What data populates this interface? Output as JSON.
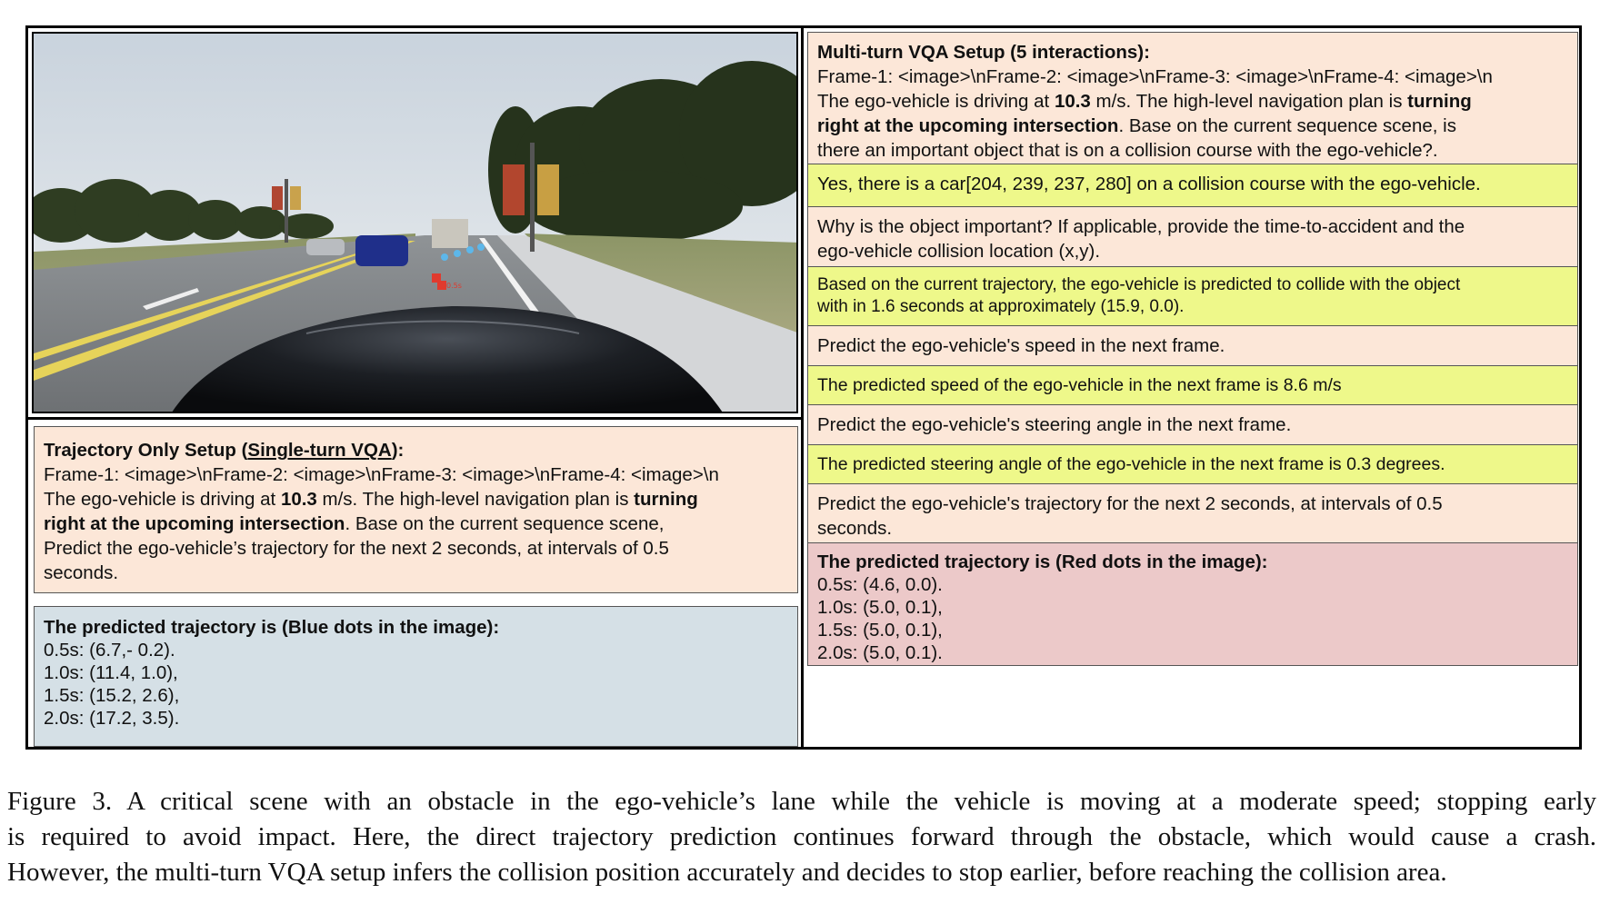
{
  "left": {
    "question": {
      "title_prefix": "Trajectory Only Setup (",
      "title_link": "Single-turn VQA",
      "title_suffix": "):",
      "frames": "Frame-1: <image>\\nFrame-2: <image>\\nFrame-3: <image>\\nFrame-4: <image>\\n",
      "speed_pre": "The ego-vehicle is driving at ",
      "speed_val": "10.3",
      "speed_post": " m/s. The high-level navigation plan is ",
      "plan_a": "turning",
      "plan_b": "right at the upcoming intersection",
      "rest_a": ". Base on the current sequence scene,",
      "rest_b": "Predict the ego-vehicle’s trajectory for the next 2 seconds, at intervals of 0.5",
      "rest_c": "seconds."
    },
    "answer": {
      "title": "The predicted trajectory is (Blue dots in the image):",
      "lines": [
        "0.5s: (6.7,- 0.2).",
        "1.0s: (11.4, 1.0),",
        "1.5s: (15.2, 2.6),",
        "2.0s: (17.2, 3.5)."
      ]
    }
  },
  "right": {
    "setup": {
      "title": "Multi-turn VQA Setup (5 interactions):",
      "frames": "Frame-1: <image>\\nFrame-2: <image>\\nFrame-3: <image>\\nFrame-4: <image>\\n",
      "speed_pre": "The ego-vehicle is driving at ",
      "speed_val": "10.3",
      "speed_post": " m/s. The high-level navigation plan is ",
      "plan_a": "turning",
      "plan_b": "right at the upcoming intersection",
      "rest_a": ". Base on the current sequence scene, is",
      "rest_b": "there an important object that is on a collision course with the ego-vehicle?."
    },
    "a1": "Yes, there is a car[204, 239, 237, 280] on a collision course with the ego-vehicle.",
    "q2_a": "Why is the object important? If applicable, provide the time-to-accident and the",
    "q2_b": "ego-vehicle collision location (x,y).",
    "a2_a": "Based on the current trajectory, the ego-vehicle is predicted to collide with the object",
    "a2_b": "with in 1.6 seconds at approximately (15.9, 0.0).",
    "q3": "Predict the ego-vehicle's speed in the next frame.",
    "a3": "The predicted speed of the ego-vehicle in the next frame is 8.6 m/s",
    "q4": "Predict the ego-vehicle's steering angle in the next frame.",
    "a4": "The predicted steering angle of the ego-vehicle in the next frame is 0.3 degrees.",
    "q5_a": "Predict the ego-vehicle's trajectory for the next 2 seconds, at intervals of 0.5",
    "q5_b": "seconds.",
    "answer": {
      "title": "The predicted trajectory is (Red dots in the image):",
      "lines": [
        "0.5s: (4.6, 0.0).",
        "1.0s: (5.0, 0.1),",
        "1.5s: (5.0, 0.1),",
        "2.0s: (5.0, 0.1)."
      ]
    }
  },
  "caption": {
    "line1": "Figure 3.  A critical scene with an obstacle in the ego-vehicle’s lane while the vehicle is moving at a moderate speed; stopping early",
    "line2": "is required to avoid impact.  Here, the direct trajectory prediction continues forward through the obstacle, which would cause a crash.",
    "line3": "However, the multi-turn VQA setup infers the collision position accurately and decides to stop earlier, before reaching the collision area."
  },
  "scene_label": "0.5s",
  "colors": {
    "peach": "#fce7d8",
    "yellow": "#eef88a",
    "blue": "#d5e0e6",
    "pink": "#ecc9c9"
  }
}
